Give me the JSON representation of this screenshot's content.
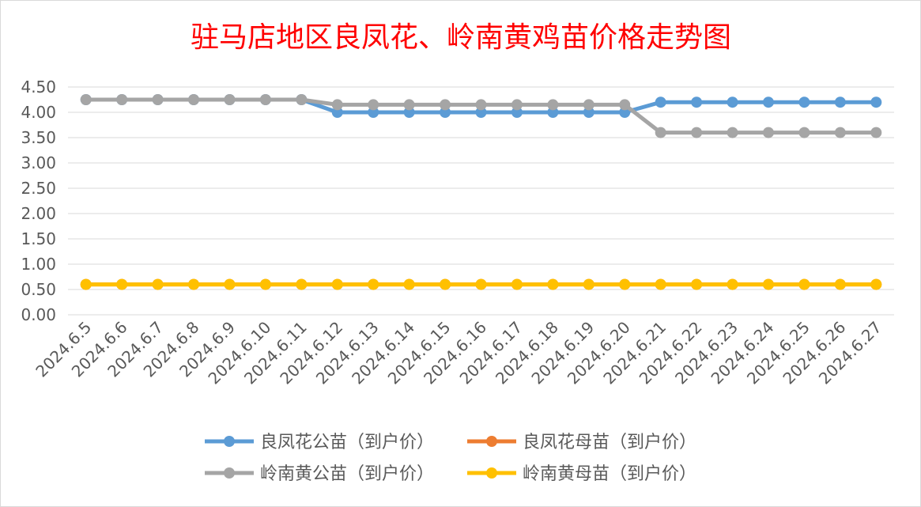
{
  "chart_data": {
    "type": "line",
    "title": "驻马店地区良凤花、岭南黄鸡苗价格走势图",
    "xlabel": "",
    "ylabel": "",
    "ylim": [
      0,
      4.5
    ],
    "yticks": [
      "0.00",
      "0.50",
      "1.00",
      "1.50",
      "2.00",
      "2.50",
      "3.00",
      "3.50",
      "4.00",
      "4.50"
    ],
    "grid": true,
    "legend_position": "bottom",
    "x": [
      "2024.6.5",
      "2024.6.6",
      "2024.6.7",
      "2024.6.8",
      "2024.6.9",
      "2024.6.10",
      "2024.6.11",
      "2024.6.12",
      "2024.6.13",
      "2024.6.14",
      "2024.6.15",
      "2024.6.16",
      "2024.6.17",
      "2024.6.18",
      "2024.6.19",
      "2024.6.20",
      "2024.6.21",
      "2024.6.22",
      "2024.6.23",
      "2024.6.24",
      "2024.6.25",
      "2024.6.26",
      "2024.6.27"
    ],
    "series": [
      {
        "name": "良凤花公苗（到户价）",
        "color": "#5b9bd5",
        "values": [
          4.25,
          4.25,
          4.25,
          4.25,
          4.25,
          4.25,
          4.25,
          4.0,
          4.0,
          4.0,
          4.0,
          4.0,
          4.0,
          4.0,
          4.0,
          4.0,
          4.2,
          4.2,
          4.2,
          4.2,
          4.2,
          4.2,
          4.2
        ]
      },
      {
        "name": "良凤花母苗（到户价）",
        "color": "#ed7d31",
        "values": [
          0.6,
          0.6,
          0.6,
          0.6,
          0.6,
          0.6,
          0.6,
          0.6,
          0.6,
          0.6,
          0.6,
          0.6,
          0.6,
          0.6,
          0.6,
          0.6,
          0.6,
          0.6,
          0.6,
          0.6,
          0.6,
          0.6,
          0.6
        ]
      },
      {
        "name": "岭南黄公苗（到户价）",
        "color": "#a5a5a5",
        "values": [
          4.25,
          4.25,
          4.25,
          4.25,
          4.25,
          4.25,
          4.25,
          4.15,
          4.15,
          4.15,
          4.15,
          4.15,
          4.15,
          4.15,
          4.15,
          4.15,
          3.6,
          3.6,
          3.6,
          3.6,
          3.6,
          3.6,
          3.6
        ]
      },
      {
        "name": "岭南黄母苗（到户价）",
        "color": "#ffc000",
        "values": [
          0.6,
          0.6,
          0.6,
          0.6,
          0.6,
          0.6,
          0.6,
          0.6,
          0.6,
          0.6,
          0.6,
          0.6,
          0.6,
          0.6,
          0.6,
          0.6,
          0.6,
          0.6,
          0.6,
          0.6,
          0.6,
          0.6,
          0.6
        ]
      }
    ],
    "title_color": "#ff0000",
    "axis_text_color": "#595959",
    "grid_color": "#d9d9d9"
  }
}
